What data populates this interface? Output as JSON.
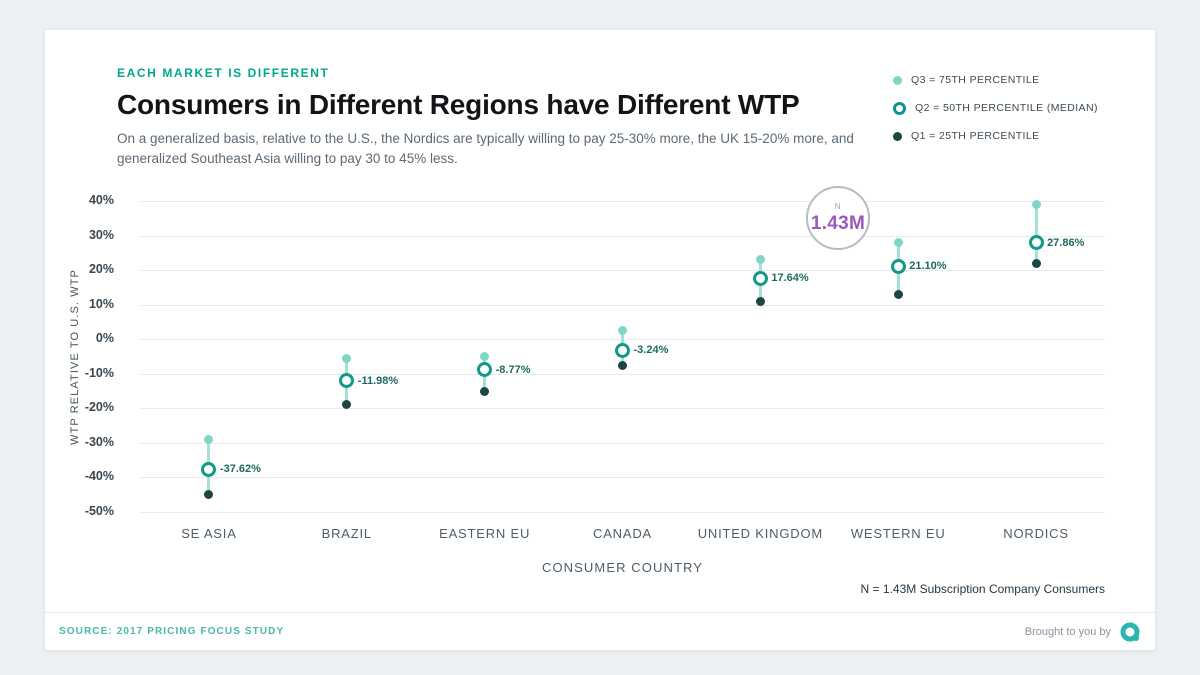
{
  "header": {
    "eyebrow": "EACH MARKET IS DIFFERENT",
    "title": "Consumers in Different Regions have Different WTP",
    "subtitle": "On a generalized basis, relative to the U.S., the Nordics are typically willing to pay 25-30% more, the UK 15-20% more, and generalized Southeast Asia willing to pay 30 to 45% less."
  },
  "legend": {
    "items": [
      {
        "type": "q3",
        "label": "Q3 = 75TH PERCENTILE"
      },
      {
        "type": "q2",
        "label": "Q2 = 50TH PERCENTILE (MEDIAN)"
      },
      {
        "type": "q1",
        "label": "Q1 = 25TH PERCENTILE"
      }
    ]
  },
  "chart_data": {
    "type": "scatter",
    "subtype": "quartile-range-dot-plot",
    "title": "Consumers in Different Regions have Different WTP",
    "xlabel": "CONSUMER COUNTRY",
    "ylabel": "WTP RELATIVE TO U.S. WTP",
    "ylim": [
      -50,
      40
    ],
    "ytick_step": 10,
    "ytick_suffix": "%",
    "grid": true,
    "legend_position": "top-right",
    "categories": [
      "SE ASIA",
      "BRAZIL",
      "EASTERN EU",
      "CANADA",
      "UNITED KINGDOM",
      "WESTERN EU",
      "NORDICS"
    ],
    "series": [
      {
        "name": "Q3 (75th percentile)",
        "values": [
          -29,
          -5.5,
          -5,
          2.5,
          23,
          28,
          39
        ]
      },
      {
        "name": "Q2 (median)",
        "values": [
          -37.62,
          -11.98,
          -8.77,
          -3.24,
          17.64,
          21.1,
          27.86
        ]
      },
      {
        "name": "Q1 (25th percentile)",
        "values": [
          -45,
          -19,
          -15,
          -7.5,
          11,
          13,
          22
        ]
      }
    ],
    "median_labels": [
      "-37.62%",
      "-11.98%",
      "-8.77%",
      "-3.24%",
      "17.64%",
      "21.10%",
      "27.86%"
    ],
    "annotation": {
      "label": "N",
      "value": "1.43M"
    }
  },
  "footnote": "N = 1.43M Subscription Company Consumers",
  "footer": {
    "source": "SOURCE: 2017 PRICING FOCUS STUDY",
    "brought_by": "Brought to you by"
  },
  "colors": {
    "accent_teal": "#00a88a",
    "q3": "#7fd6c5",
    "q2": "#0d9488",
    "q1": "#1c4642",
    "range_line": "#a7e0d4",
    "median_label_text": "#1d6b5e",
    "annotation_value": "#9c59bd",
    "source_text": "#49b8ab"
  }
}
